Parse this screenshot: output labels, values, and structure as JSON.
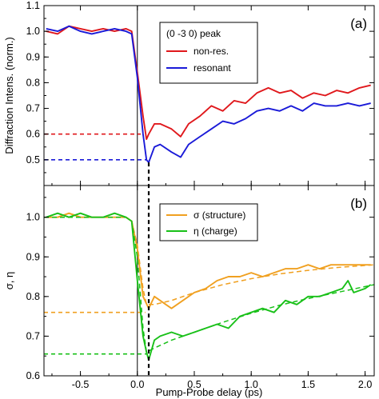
{
  "chart_data": [
    {
      "id": "a",
      "type": "line",
      "panel_label": "(a)",
      "ylabel": "Diffraction Intens. (norm.)",
      "xlim": [
        -0.82,
        2.08
      ],
      "ylim": [
        0.4,
        1.1
      ],
      "yticks": [
        "0.5",
        "0.6",
        "0.7",
        "0.8",
        "0.9",
        "1.0",
        "1.1"
      ],
      "legend_title": "(0 -3 0) peak",
      "legend_position": "top-center",
      "colors": {
        "non_res": "#e0181c",
        "resonant": "#1a1ad8"
      },
      "series": [
        {
          "name": "non-res.",
          "x": [
            -0.8,
            -0.7,
            -0.6,
            -0.5,
            -0.4,
            -0.3,
            -0.2,
            -0.1,
            -0.05,
            0.0,
            0.05,
            0.08,
            0.1,
            0.15,
            0.2,
            0.3,
            0.38,
            0.45,
            0.55,
            0.65,
            0.75,
            0.85,
            0.95,
            1.05,
            1.15,
            1.25,
            1.35,
            1.45,
            1.55,
            1.65,
            1.75,
            1.85,
            1.95,
            2.05
          ],
          "y": [
            1.0,
            0.99,
            1.02,
            1.01,
            1.0,
            1.01,
            1.0,
            1.01,
            1.0,
            0.84,
            0.67,
            0.58,
            0.6,
            0.64,
            0.64,
            0.62,
            0.59,
            0.64,
            0.67,
            0.71,
            0.69,
            0.73,
            0.72,
            0.76,
            0.78,
            0.76,
            0.77,
            0.74,
            0.76,
            0.75,
            0.77,
            0.76,
            0.78,
            0.79
          ]
        },
        {
          "name": "resonant",
          "x": [
            -0.8,
            -0.7,
            -0.6,
            -0.5,
            -0.4,
            -0.3,
            -0.2,
            -0.1,
            -0.05,
            0.0,
            0.05,
            0.08,
            0.1,
            0.15,
            0.2,
            0.3,
            0.38,
            0.45,
            0.55,
            0.65,
            0.75,
            0.85,
            0.95,
            1.05,
            1.15,
            1.25,
            1.35,
            1.45,
            1.55,
            1.65,
            1.75,
            1.85,
            1.95,
            2.05
          ],
          "y": [
            1.01,
            1.0,
            1.02,
            1.0,
            0.99,
            1.0,
            1.01,
            1.0,
            0.99,
            0.82,
            0.6,
            0.5,
            0.49,
            0.55,
            0.56,
            0.53,
            0.51,
            0.56,
            0.59,
            0.62,
            0.65,
            0.64,
            0.66,
            0.69,
            0.7,
            0.69,
            0.71,
            0.69,
            0.72,
            0.71,
            0.71,
            0.72,
            0.71,
            0.72
          ]
        }
      ],
      "reference_levels": [
        {
          "series": "non-res.",
          "y": 0.6,
          "x_end": 0.03
        },
        {
          "series": "resonant",
          "y": 0.5,
          "x_end": 0.08
        }
      ]
    },
    {
      "id": "b",
      "type": "line",
      "panel_label": "(b)",
      "ylabel": "σ, η",
      "xlabel": "Pump-Probe delay (ps)",
      "xlim": [
        -0.82,
        2.08
      ],
      "ylim": [
        0.6,
        1.08
      ],
      "yticks": [
        "0.6",
        "0.7",
        "0.8",
        "0.9",
        "1.0"
      ],
      "xticks": [
        "-0.5",
        "0.0",
        "0.5",
        "1.0",
        "1.5",
        "2.0"
      ],
      "legend_position": "top-center",
      "colors": {
        "sigma": "#f0a020",
        "eta": "#18c018"
      },
      "series": [
        {
          "name": "σ (structure)",
          "x": [
            -0.8,
            -0.7,
            -0.6,
            -0.5,
            -0.4,
            -0.3,
            -0.2,
            -0.1,
            -0.05,
            0.0,
            0.05,
            0.1,
            0.15,
            0.2,
            0.25,
            0.3,
            0.4,
            0.5,
            0.6,
            0.7,
            0.8,
            0.9,
            1.0,
            1.1,
            1.2,
            1.3,
            1.4,
            1.5,
            1.6,
            1.7,
            1.8,
            1.9,
            2.0,
            2.05
          ],
          "y": [
            1.0,
            1.0,
            1.01,
            1.0,
            1.0,
            1.0,
            1.0,
            1.0,
            0.99,
            0.92,
            0.8,
            0.77,
            0.8,
            0.79,
            0.78,
            0.77,
            0.79,
            0.81,
            0.82,
            0.84,
            0.85,
            0.85,
            0.86,
            0.85,
            0.86,
            0.87,
            0.87,
            0.88,
            0.87,
            0.88,
            0.88,
            0.88,
            0.88,
            0.88
          ]
        },
        {
          "name": "η (charge)",
          "x": [
            -0.8,
            -0.7,
            -0.6,
            -0.5,
            -0.4,
            -0.3,
            -0.2,
            -0.1,
            -0.05,
            0.0,
            0.05,
            0.08,
            0.1,
            0.15,
            0.2,
            0.3,
            0.4,
            0.5,
            0.6,
            0.7,
            0.8,
            0.9,
            1.0,
            1.1,
            1.2,
            1.3,
            1.4,
            1.5,
            1.6,
            1.7,
            1.8,
            1.85,
            1.9,
            2.0,
            2.05
          ],
          "y": [
            1.0,
            1.01,
            1.0,
            1.01,
            1.0,
            1.0,
            1.01,
            1.0,
            0.99,
            0.84,
            0.7,
            0.66,
            0.64,
            0.69,
            0.7,
            0.71,
            0.7,
            0.71,
            0.72,
            0.73,
            0.72,
            0.75,
            0.76,
            0.77,
            0.76,
            0.79,
            0.78,
            0.8,
            0.8,
            0.81,
            0.82,
            0.84,
            0.81,
            0.82,
            0.83
          ]
        },
        {
          "name": "σ fit",
          "style": "dashed",
          "x": [
            -0.82,
            -0.1,
            -0.05,
            0.0,
            0.05,
            0.08,
            0.15,
            0.3,
            0.5,
            0.75,
            1.0,
            1.25,
            1.5,
            1.75,
            2.08
          ],
          "y": [
            1.0,
            1.0,
            0.99,
            0.93,
            0.82,
            0.78,
            0.78,
            0.79,
            0.81,
            0.83,
            0.845,
            0.857,
            0.866,
            0.873,
            0.88
          ]
        },
        {
          "name": "η fit",
          "style": "dashed",
          "x": [
            -0.82,
            -0.1,
            -0.05,
            0.0,
            0.05,
            0.08,
            0.15,
            0.3,
            0.5,
            0.75,
            1.0,
            1.25,
            1.5,
            1.75,
            2.08
          ],
          "y": [
            1.0,
            1.0,
            0.99,
            0.9,
            0.72,
            0.66,
            0.67,
            0.69,
            0.71,
            0.735,
            0.758,
            0.778,
            0.795,
            0.81,
            0.83
          ]
        }
      ],
      "reference_levels": [
        {
          "series": "σ (structure)",
          "y": 0.76,
          "x_end": 0.07
        },
        {
          "series": "η (charge)",
          "y": 0.655,
          "x_end": 0.08
        }
      ]
    }
  ]
}
